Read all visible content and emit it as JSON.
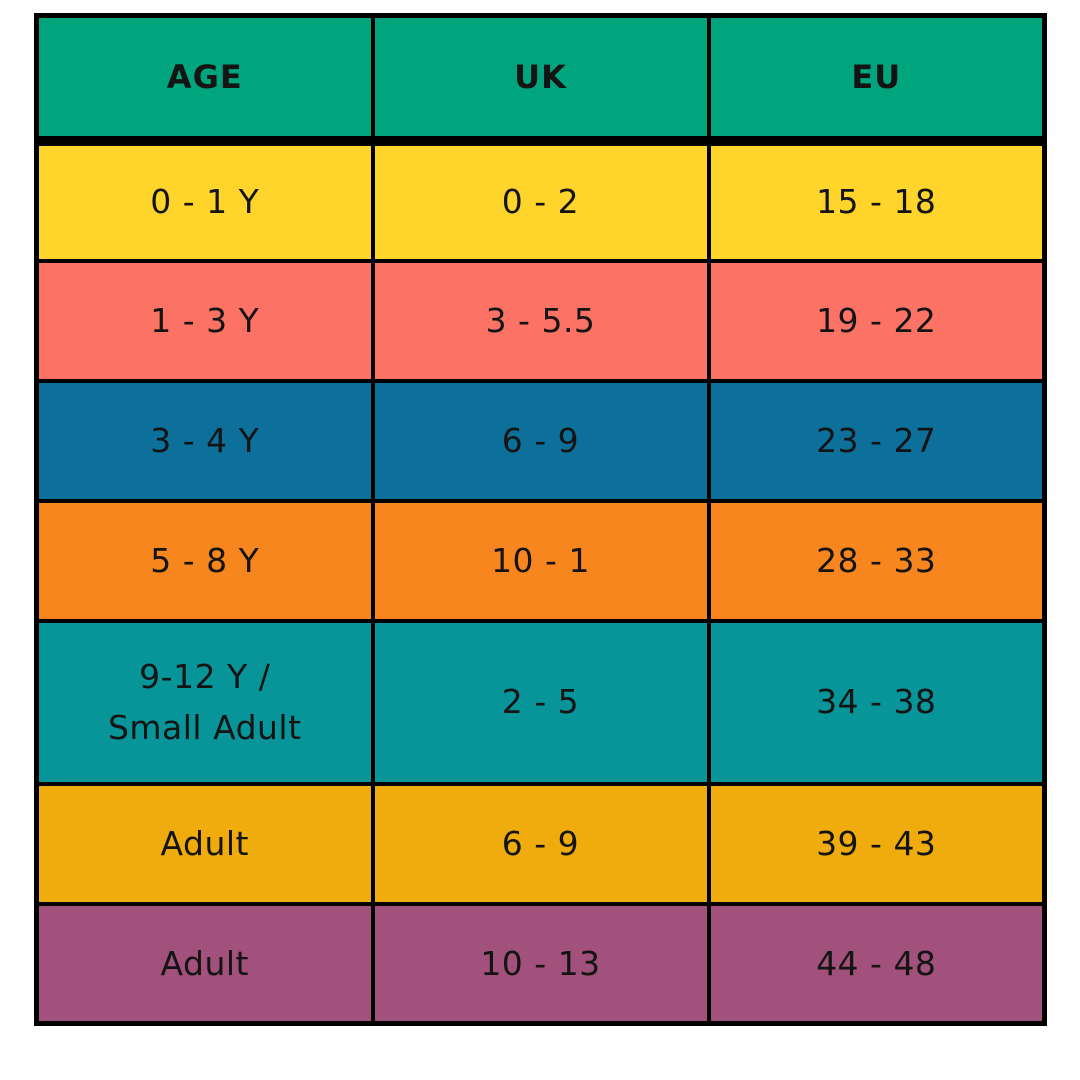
{
  "table": {
    "header": {
      "labels": [
        "AGE",
        "UK",
        "EU"
      ],
      "background": "#00A57D"
    },
    "style": {
      "border_color": "#000000",
      "text_color": "#141414",
      "page_background": "#FFFFFF"
    },
    "rows": [
      {
        "age": "0 - 1 Y",
        "uk": "0 - 2",
        "eu": "15 - 18",
        "color": "#FFD42B"
      },
      {
        "age": "1 - 3 Y",
        "uk": "3 - 5.5",
        "eu": "19 - 22",
        "color": "#FC7265"
      },
      {
        "age": "3 - 4 Y",
        "uk": "6 - 9",
        "eu": "23 - 27",
        "color": "#0D709B"
      },
      {
        "age": "5 - 8 Y",
        "uk": "10 - 1",
        "eu": "28 - 33",
        "color": "#F8861E"
      },
      {
        "age": "9-12 Y /\nSmall Adult",
        "uk": "2 - 5",
        "eu": "34 - 38",
        "color": "#079599"
      },
      {
        "age": "Adult",
        "uk": "6 - 9",
        "eu": "39 - 43",
        "color": "#F0AC0C"
      },
      {
        "age": "Adult",
        "uk": "10 - 13",
        "eu": "44 - 48",
        "color": "#A1517B"
      }
    ]
  },
  "chart_data": {
    "type": "table",
    "columns": [
      "AGE",
      "UK",
      "EU"
    ],
    "rows": [
      [
        "0 - 1 Y",
        "0 - 2",
        "15 - 18"
      ],
      [
        "1 - 3 Y",
        "3 - 5.5",
        "19 - 22"
      ],
      [
        "3 - 4 Y",
        "6 - 9",
        "23 - 27"
      ],
      [
        "5 - 8 Y",
        "10 - 1",
        "28 - 33"
      ],
      [
        "9-12 Y / Small Adult",
        "2 - 5",
        "34 - 38"
      ],
      [
        "Adult",
        "6 - 9",
        "39 - 43"
      ],
      [
        "Adult",
        "10 - 13",
        "44 - 48"
      ]
    ],
    "header_color": "#00A57D",
    "row_colors": [
      "#FFD42B",
      "#FC7265",
      "#0D709B",
      "#F8861E",
      "#079599",
      "#F0AC0C",
      "#A1517B"
    ],
    "grid": true,
    "legend": false
  }
}
